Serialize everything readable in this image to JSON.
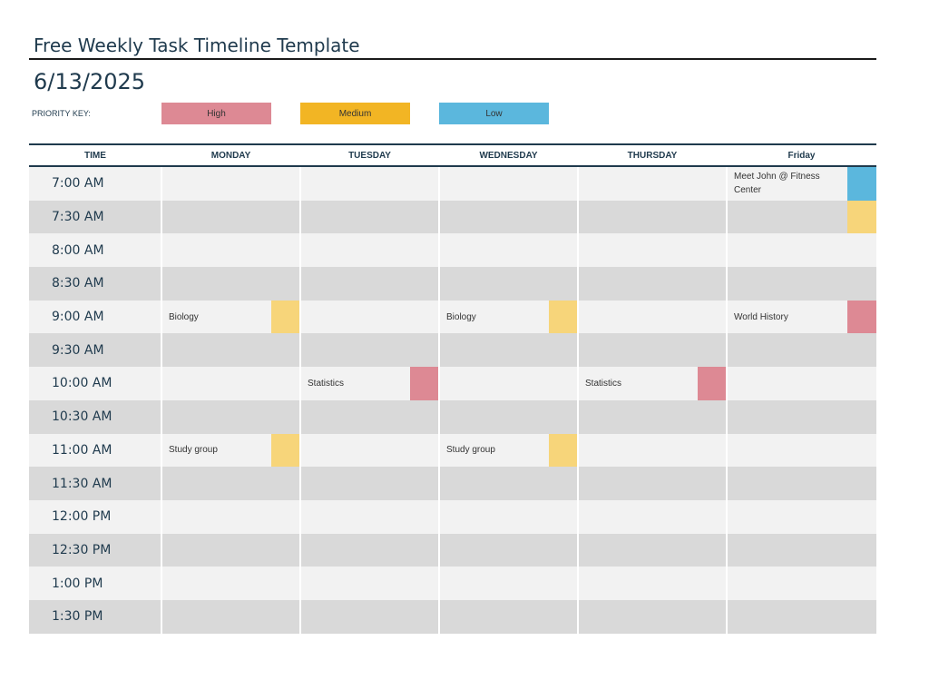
{
  "title": "Free Weekly Task Timeline Template",
  "date": "6/13/2025",
  "priority_key": {
    "label": "PRIORITY KEY:",
    "items": [
      {
        "id": "high",
        "label": "High",
        "color": "#dd8994"
      },
      {
        "id": "medium",
        "label": "Medium",
        "color": "#f2b524"
      },
      {
        "id": "low",
        "label": "Low",
        "color": "#5bb7dd"
      }
    ]
  },
  "marker_colors": {
    "high": "#dd8994",
    "medium": "#f7d57a",
    "low": "#5bb7dd"
  },
  "row_colors": {
    "light": "#f2f2f2",
    "dark": "#d9d9d9"
  },
  "columns": [
    "TIME",
    "MONDAY",
    "TUESDAY",
    "WEDNESDAY",
    "THURSDAY",
    "Friday"
  ],
  "rows": [
    {
      "time": "7:00 AM",
      "cells": [
        null,
        null,
        null,
        null,
        {
          "text": "Meet John @ Fitness Center",
          "priority": "low"
        }
      ]
    },
    {
      "time": "7:30 AM",
      "cells": [
        null,
        null,
        null,
        null,
        {
          "text": "",
          "priority": "medium"
        }
      ]
    },
    {
      "time": "8:00 AM",
      "cells": [
        null,
        null,
        null,
        null,
        null
      ]
    },
    {
      "time": "8:30 AM",
      "cells": [
        null,
        null,
        null,
        null,
        null
      ]
    },
    {
      "time": "9:00 AM",
      "cells": [
        {
          "text": "Biology",
          "priority": "medium"
        },
        null,
        {
          "text": "Biology",
          "priority": "medium"
        },
        null,
        {
          "text": "World History",
          "priority": "high"
        }
      ]
    },
    {
      "time": "9:30 AM",
      "cells": [
        null,
        null,
        null,
        null,
        null
      ]
    },
    {
      "time": "10:00 AM",
      "cells": [
        null,
        {
          "text": "Statistics",
          "priority": "high"
        },
        null,
        {
          "text": "Statistics",
          "priority": "high"
        },
        null
      ]
    },
    {
      "time": "10:30 AM",
      "cells": [
        null,
        null,
        null,
        null,
        null
      ]
    },
    {
      "time": "11:00 AM",
      "cells": [
        {
          "text": "Study group",
          "priority": "medium"
        },
        null,
        {
          "text": "Study group",
          "priority": "medium"
        },
        null,
        null
      ]
    },
    {
      "time": "11:30 AM",
      "cells": [
        null,
        null,
        null,
        null,
        null
      ]
    },
    {
      "time": "12:00 PM",
      "cells": [
        null,
        null,
        null,
        null,
        null
      ]
    },
    {
      "time": "12:30 PM",
      "cells": [
        null,
        null,
        null,
        null,
        null
      ]
    },
    {
      "time": "1:00 PM",
      "cells": [
        null,
        null,
        null,
        null,
        null
      ]
    },
    {
      "time": "1:30 PM",
      "cells": [
        null,
        null,
        null,
        null,
        null
      ]
    }
  ]
}
